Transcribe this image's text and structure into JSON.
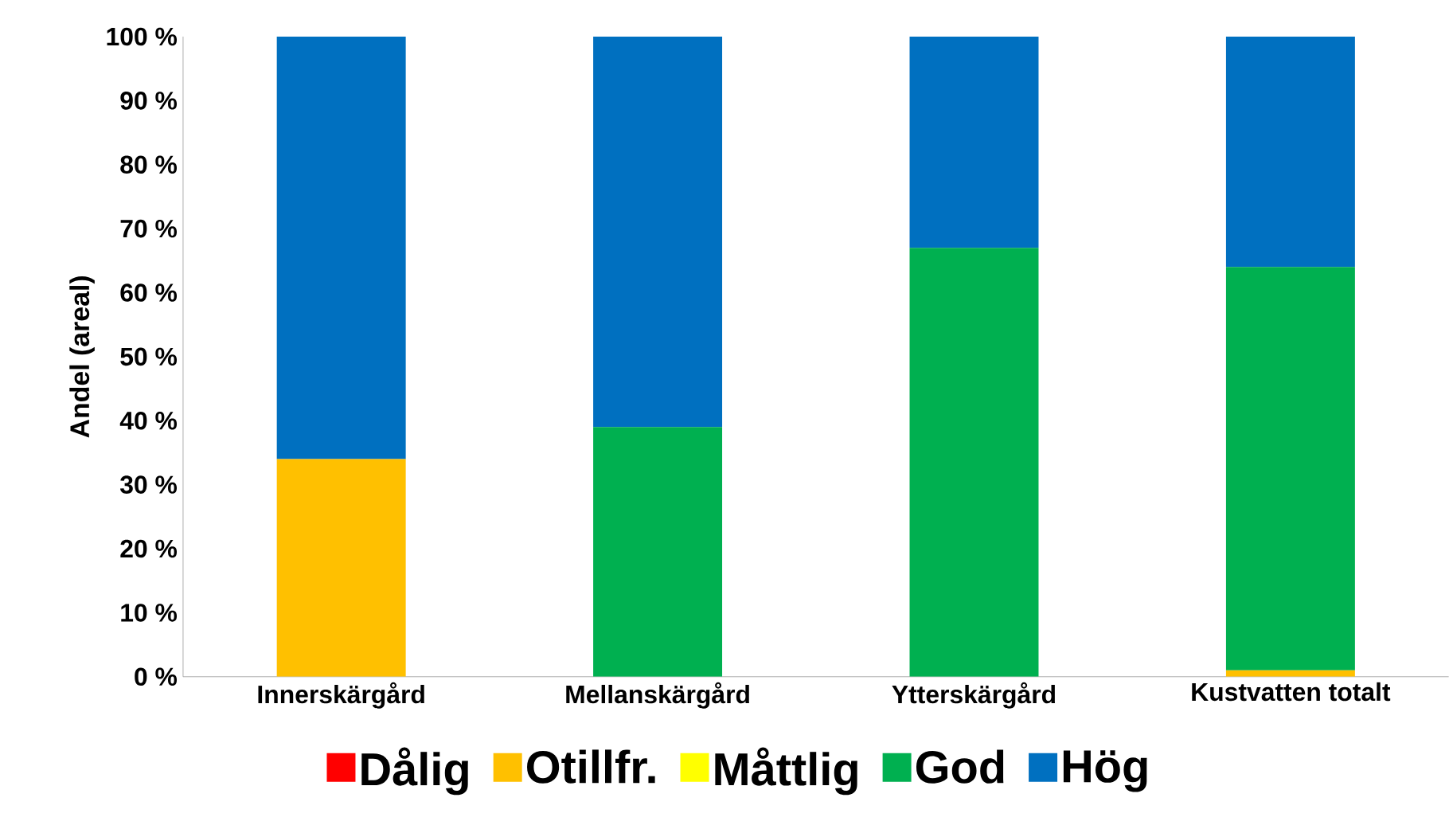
{
  "chart_data": {
    "type": "bar",
    "stacked": true,
    "ylabel": "Andel (areal)",
    "categories": [
      "Innerskärgård",
      "Mellanskärgård",
      "Ytterskärgård",
      "Kustvatten totalt"
    ],
    "series": [
      {
        "name": "Dålig",
        "color": "#ff0000",
        "values": [
          0,
          0,
          0,
          0
        ]
      },
      {
        "name": "Otillfr.",
        "color": "#ffc000",
        "values": [
          34,
          0,
          0,
          1
        ]
      },
      {
        "name": "Måttlig",
        "color": "#ffff00",
        "values": [
          0,
          0,
          0,
          0
        ]
      },
      {
        "name": "God",
        "color": "#00b050",
        "values": [
          0,
          39,
          67,
          63
        ]
      },
      {
        "name": "Hög",
        "color": "#0070c0",
        "values": [
          66,
          61,
          33,
          36
        ]
      }
    ],
    "ylim": [
      0,
      100
    ],
    "yticks": [
      {
        "value": 0,
        "label": "0 %"
      },
      {
        "value": 10,
        "label": "10 %"
      },
      {
        "value": 20,
        "label": "20 %"
      },
      {
        "value": 30,
        "label": "30 %"
      },
      {
        "value": 40,
        "label": "40 %"
      },
      {
        "value": 50,
        "label": "50 %"
      },
      {
        "value": 60,
        "label": "60 %"
      },
      {
        "value": 70,
        "label": "70 %"
      },
      {
        "value": 80,
        "label": "80 %"
      },
      {
        "value": 90,
        "label": "90 %"
      },
      {
        "value": 100,
        "label": "100 %"
      }
    ],
    "grid": false,
    "legend": "bottom"
  }
}
